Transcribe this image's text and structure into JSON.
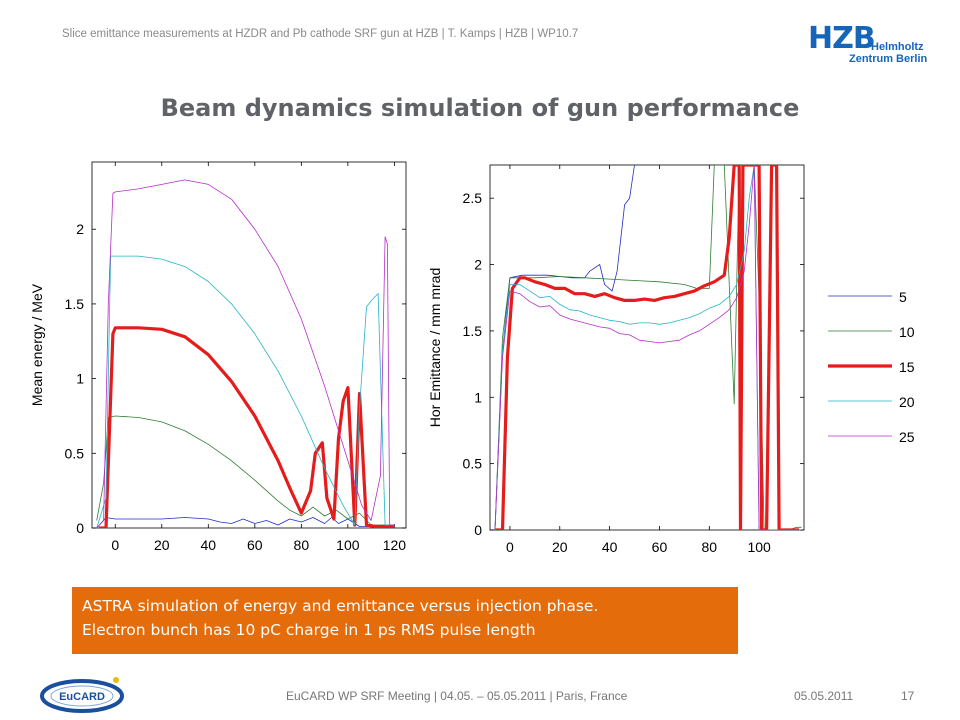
{
  "header": {
    "running_title": "Slice emittance measurements at HZDR and Pb cathode SRF gun at HZB | T. Kamps | HZB | WP10.7",
    "logo_mark": "HZB",
    "logo_sub1": "Helmholtz",
    "logo_sub2": "Zentrum Berlin"
  },
  "slide_title": "Beam dynamics simulation of gun performance",
  "colors": {
    "s5": "#1f2fc4",
    "s10": "#2e7d32",
    "s15": "#e51c1c",
    "s20": "#22b4c8",
    "s25": "#b62ec8",
    "note_bg": "#e46c0a",
    "title": "#5f6368",
    "logo": "#1565b8"
  },
  "chart_data": [
    {
      "type": "line",
      "ylabel": "Mean energy / MeV",
      "xlabel": "",
      "xlim": [
        -10,
        125
      ],
      "ylim": [
        0,
        2.45
      ],
      "xticks": [
        "0",
        "20",
        "40",
        "60",
        "80",
        "100",
        "120"
      ],
      "yticks": [
        "0",
        "0.5",
        "1",
        "1.5",
        "2"
      ],
      "series": [
        {
          "name": "5",
          "color": "#1f2fc4",
          "width": 0.8,
          "x": [
            -8,
            -4,
            0,
            10,
            20,
            30,
            40,
            45,
            50,
            55,
            60,
            65,
            70,
            75,
            80,
            85,
            90,
            93,
            96,
            100,
            105,
            110,
            115,
            120
          ],
          "y": [
            0,
            0.07,
            0.06,
            0.06,
            0.06,
            0.07,
            0.06,
            0.04,
            0.03,
            0.06,
            0.03,
            0.05,
            0.02,
            0.06,
            0.04,
            0.07,
            0.03,
            0.07,
            0.03,
            0.06,
            0.01,
            0.01,
            0.01,
            0.01
          ]
        },
        {
          "name": "10",
          "color": "#2e7d32",
          "width": 0.8,
          "x": [
            -8,
            -5,
            -3,
            0,
            10,
            20,
            30,
            40,
            50,
            60,
            70,
            75,
            80,
            85,
            90,
            95,
            100,
            105,
            110,
            115,
            120
          ],
          "y": [
            0.05,
            0.3,
            0.74,
            0.75,
            0.74,
            0.71,
            0.65,
            0.56,
            0.45,
            0.32,
            0.18,
            0.12,
            0.08,
            0.14,
            0.08,
            0.12,
            0.06,
            0.1,
            0.02,
            0.02,
            0.02
          ]
        },
        {
          "name": "15",
          "color": "#e51c1c",
          "width": 3.2,
          "x": [
            -7,
            -4,
            -1,
            0,
            10,
            20,
            30,
            40,
            50,
            60,
            70,
            75,
            80,
            84,
            86,
            89,
            91,
            94,
            96,
            98,
            100,
            103,
            105,
            108,
            112,
            116,
            120
          ],
          "y": [
            0,
            0,
            1.3,
            1.34,
            1.34,
            1.33,
            1.28,
            1.16,
            0.98,
            0.75,
            0.45,
            0.27,
            0.1,
            0.25,
            0.5,
            0.57,
            0.2,
            0.06,
            0.6,
            0.85,
            0.94,
            0.02,
            0.9,
            0.02,
            0.01,
            0.01,
            0.01
          ]
        },
        {
          "name": "20",
          "color": "#22b4c8",
          "width": 0.8,
          "x": [
            -8,
            -4,
            -2,
            0,
            10,
            20,
            30,
            40,
            50,
            60,
            70,
            80,
            90,
            98,
            103,
            105,
            108,
            110,
            113,
            116,
            120
          ],
          "y": [
            0,
            0.2,
            1.82,
            1.82,
            1.82,
            1.8,
            1.75,
            1.65,
            1.5,
            1.3,
            1.05,
            0.75,
            0.4,
            0.15,
            0.02,
            0.8,
            1.48,
            1.52,
            1.57,
            0.02,
            0.02
          ]
        },
        {
          "name": "25",
          "color": "#b62ec8",
          "width": 0.8,
          "x": [
            -8,
            -5,
            -3,
            -1,
            0,
            10,
            20,
            30,
            40,
            50,
            60,
            70,
            80,
            90,
            100,
            106,
            110,
            114,
            116,
            117,
            118,
            120
          ],
          "y": [
            0,
            0.05,
            1.5,
            2.24,
            2.25,
            2.27,
            2.3,
            2.33,
            2.3,
            2.2,
            2.0,
            1.75,
            1.4,
            0.95,
            0.45,
            0.15,
            0.05,
            0.35,
            1.95,
            1.9,
            0.02,
            0.02
          ]
        }
      ]
    },
    {
      "type": "line",
      "ylabel": "Hor Emittance / mm mrad",
      "xlabel": "",
      "xlim": [
        -8,
        118
      ],
      "ylim": [
        0,
        2.75
      ],
      "xticks": [
        "0",
        "20",
        "40",
        "60",
        "80",
        "100"
      ],
      "yticks": [
        "0",
        "0.5",
        "1",
        "1.5",
        "2",
        "2.5"
      ],
      "legend": {
        "placement": "right",
        "entries": [
          "5",
          "10",
          "15",
          "20",
          "25"
        ]
      },
      "series": [
        {
          "name": "5",
          "color": "#1f2fc4",
          "width": 0.8,
          "x": [
            -6,
            -3,
            0,
            5,
            10,
            15,
            20,
            25,
            30,
            32,
            36,
            38,
            41,
            43,
            46,
            48,
            50
          ],
          "y": [
            0,
            1.35,
            1.9,
            1.92,
            1.92,
            1.92,
            1.91,
            1.9,
            1.9,
            1.95,
            2.0,
            1.85,
            1.8,
            1.95,
            2.45,
            2.5,
            2.75
          ]
        },
        {
          "name": "10",
          "color": "#2e7d32",
          "width": 0.8,
          "x": [
            -6,
            -3,
            0,
            10,
            20,
            30,
            40,
            50,
            60,
            70,
            75,
            80,
            82,
            84,
            86,
            90,
            92,
            95,
            98,
            100,
            102,
            104,
            108,
            112,
            115,
            117
          ],
          "y": [
            0,
            1.45,
            1.9,
            1.9,
            1.91,
            1.9,
            1.89,
            1.88,
            1.87,
            1.85,
            1.82,
            1.82,
            2.8,
            2.8,
            2.8,
            0.95,
            2.8,
            2.8,
            2.8,
            1.75,
            0.0,
            0.0,
            0.0,
            0.0,
            0.02,
            0.02
          ]
        },
        {
          "name": "15",
          "color": "#e51c1c",
          "width": 3.2,
          "x": [
            -6,
            -3,
            -1,
            1,
            4,
            6,
            10,
            14,
            18,
            22,
            26,
            30,
            34,
            38,
            42,
            46,
            50,
            54,
            58,
            62,
            66,
            70,
            74,
            78,
            82,
            86,
            88,
            90,
            91,
            92,
            92.5,
            93.5,
            96,
            100,
            101,
            103,
            105,
            107,
            108,
            110,
            112,
            114,
            116
          ],
          "y": [
            0,
            0,
            1.3,
            1.82,
            1.9,
            1.9,
            1.87,
            1.85,
            1.82,
            1.82,
            1.78,
            1.78,
            1.76,
            1.78,
            1.75,
            1.73,
            1.73,
            1.74,
            1.73,
            1.75,
            1.76,
            1.78,
            1.8,
            1.84,
            1.87,
            1.92,
            2.2,
            2.8,
            2.8,
            2.8,
            0.0,
            2.8,
            2.8,
            2.8,
            0.0,
            0.0,
            2.8,
            2.8,
            0.0,
            0.0,
            0.0,
            0.0,
            0.0
          ]
        },
        {
          "name": "20",
          "color": "#22b4c8",
          "width": 0.8,
          "x": [
            -6,
            -3,
            0,
            4,
            8,
            12,
            16,
            20,
            24,
            28,
            32,
            36,
            40,
            44,
            48,
            52,
            56,
            60,
            64,
            68,
            72,
            76,
            80,
            84,
            88,
            91,
            94,
            96,
            98,
            100,
            104,
            108,
            112,
            117
          ],
          "y": [
            0,
            1.35,
            1.85,
            1.85,
            1.8,
            1.75,
            1.76,
            1.7,
            1.66,
            1.65,
            1.62,
            1.6,
            1.58,
            1.57,
            1.55,
            1.56,
            1.56,
            1.55,
            1.56,
            1.58,
            1.6,
            1.63,
            1.67,
            1.7,
            1.76,
            1.85,
            2.1,
            2.5,
            2.8,
            0.0,
            0.0,
            0.0,
            0.0,
            0.0
          ]
        },
        {
          "name": "25",
          "color": "#b62ec8",
          "width": 0.8,
          "x": [
            -6,
            -3,
            0,
            4,
            8,
            12,
            16,
            20,
            24,
            28,
            32,
            36,
            40,
            44,
            48,
            52,
            56,
            60,
            64,
            68,
            72,
            76,
            80,
            84,
            88,
            91,
            94,
            96,
            98,
            100,
            104,
            108,
            112,
            117
          ],
          "y": [
            0,
            1.3,
            1.8,
            1.78,
            1.72,
            1.68,
            1.69,
            1.62,
            1.59,
            1.57,
            1.55,
            1.53,
            1.52,
            1.48,
            1.47,
            1.43,
            1.42,
            1.41,
            1.42,
            1.43,
            1.47,
            1.5,
            1.55,
            1.6,
            1.66,
            1.75,
            1.95,
            2.3,
            2.8,
            0.0,
            0.0,
            0.0,
            0.0,
            0.0
          ]
        }
      ]
    }
  ],
  "note": {
    "line1": "ASTRA simulation of energy and emittance versus injection phase.",
    "line2": "Electron bunch has 10 pC charge in 1 ps RMS pulse length"
  },
  "footer": {
    "meeting": "EuCARD WP SRF Meeting | 04.05. – 05.05.2011 | Paris, France",
    "date": "05.05.2011",
    "page": "17",
    "eucard_logo": "EuCARD"
  }
}
